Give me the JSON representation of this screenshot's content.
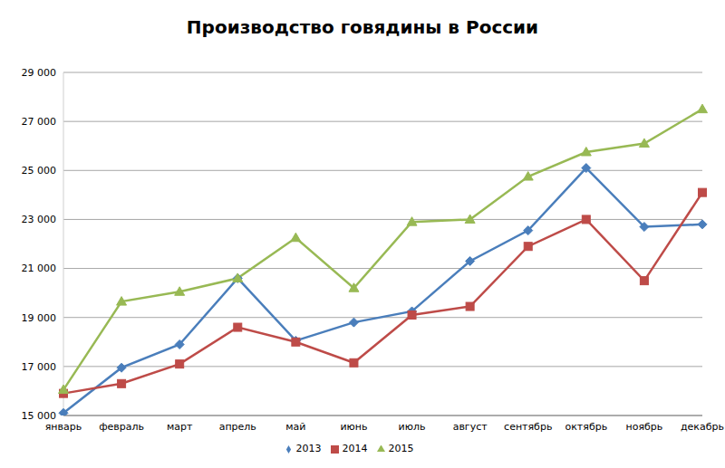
{
  "chart_data": {
    "type": "line",
    "title": "Производство говядины в России",
    "categories": [
      "январь",
      "февраль",
      "март",
      "апрель",
      "май",
      "июнь",
      "июль",
      "август",
      "сентябрь",
      "октябрь",
      "ноябрь",
      "декабрь"
    ],
    "series": [
      {
        "name": "2013",
        "color": "#4a7ebb",
        "marker": "diamond",
        "values": [
          15100,
          16950,
          17900,
          20600,
          18050,
          18800,
          19250,
          21300,
          22550,
          25100,
          22700,
          22800
        ]
      },
      {
        "name": "2014",
        "color": "#be4b48",
        "marker": "square",
        "values": [
          15900,
          16300,
          17100,
          18600,
          18000,
          17150,
          19100,
          19450,
          21900,
          23000,
          20500,
          24100
        ]
      },
      {
        "name": "2015",
        "color": "#98b954",
        "marker": "triangle",
        "values": [
          16050,
          19650,
          20050,
          20600,
          22250,
          20200,
          22900,
          23000,
          24750,
          25750,
          26100,
          27500
        ]
      }
    ],
    "ylim": [
      15000,
      29000
    ],
    "yticks": [
      {
        "value": 15000,
        "label": "15 000"
      },
      {
        "value": 17000,
        "label": "17 000"
      },
      {
        "value": 19000,
        "label": "19 000"
      },
      {
        "value": 21000,
        "label": "21 000"
      },
      {
        "value": 23000,
        "label": "23 000"
      },
      {
        "value": 25000,
        "label": "25 000"
      },
      {
        "value": 27000,
        "label": "27 000"
      },
      {
        "value": 29000,
        "label": "29 000"
      }
    ],
    "grid": true,
    "legend": "bottom"
  }
}
